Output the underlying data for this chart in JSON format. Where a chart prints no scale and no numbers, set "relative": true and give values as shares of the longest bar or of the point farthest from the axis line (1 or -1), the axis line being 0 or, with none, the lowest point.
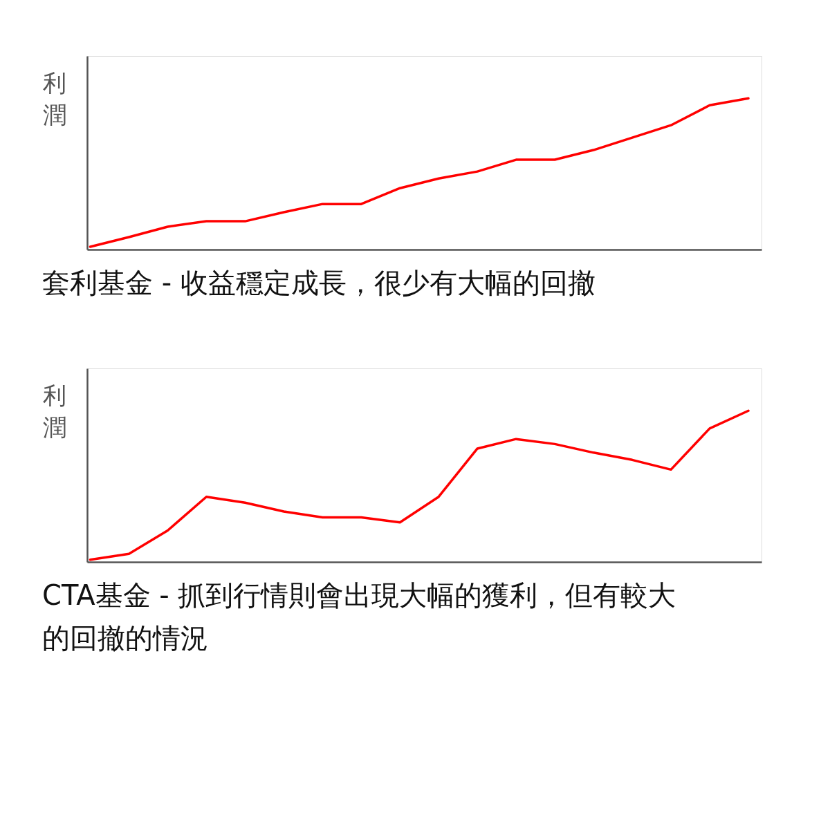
{
  "chart_data": [
    {
      "type": "line",
      "relative": true,
      "ylabel": "利潤",
      "title": "套利基金 - 收益穩定成長，很少有大幅的回撤",
      "categories": [
        null,
        null,
        null,
        null,
        null,
        null,
        null,
        null,
        null,
        null,
        null,
        null,
        null,
        null,
        null,
        null,
        null,
        null
      ],
      "series": [
        {
          "color": "#ff0000",
          "values": [
            0.018,
            0.082,
            0.151,
            0.187,
            0.187,
            0.247,
            0.301,
            0.301,
            0.406,
            0.47,
            0.516,
            0.594,
            0.594,
            0.658,
            0.74,
            0.822,
            0.954,
            1
          ]
        }
      ],
      "grid": false,
      "marker": "none",
      "line_style": "solid",
      "tick_labels": false
    },
    {
      "type": "line",
      "relative": true,
      "ylabel": "利潤",
      "title": "CTA基金 - 抓到行情則會出現大幅的獲利，但有較大的回撤的情況",
      "categories": [
        null,
        null,
        null,
        null,
        null,
        null,
        null,
        null,
        null,
        null,
        null,
        null,
        null,
        null,
        null,
        null,
        null,
        null
      ],
      "series": [
        {
          "color": "#ff0000",
          "values": [
            0.015,
            0.054,
            0.208,
            0.431,
            0.392,
            0.334,
            0.295,
            0.295,
            0.262,
            0.431,
            0.75,
            0.813,
            0.78,
            0.723,
            0.675,
            0.611,
            0.883,
            1
          ]
        }
      ],
      "grid": false,
      "marker": "none",
      "line_style": "solid",
      "tick_labels": false
    }
  ]
}
